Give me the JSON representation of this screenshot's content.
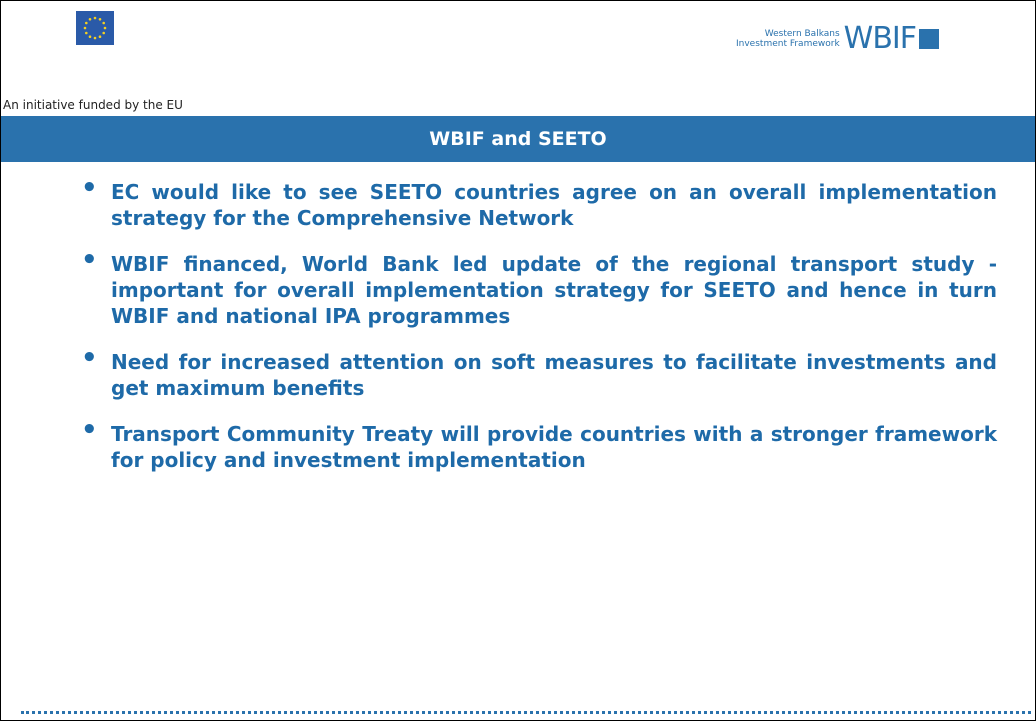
{
  "header": {
    "caption": "An initiative funded by the EU",
    "logo_subtitle": [
      "Western Balkans",
      "Investment Framework"
    ],
    "logo_mark": "WBIF"
  },
  "title": "WBIF and SEETO",
  "bullets": [
    "EC would like to see SEETO countries agree on an overall implementation strategy for the Comprehensive Network",
    "WBIF financed, World Bank led update of the regional transport study  - important for overall implementation strategy for SEETO and hence in turn WBIF and national IPA programmes",
    "Need for increased attention on soft measures to facilitate investments and get maximum benefits",
    "Transport Community Treaty will provide countries with a stronger framework for policy and investment implementation"
  ]
}
